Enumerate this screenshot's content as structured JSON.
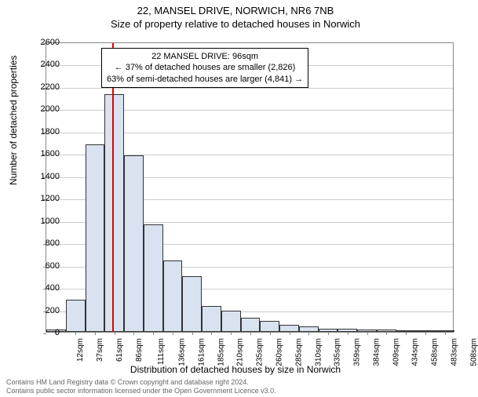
{
  "titles": {
    "main": "22, MANSEL DRIVE, NORWICH, NR6 7NB",
    "sub": "Size of property relative to detached houses in Norwich"
  },
  "chart": {
    "type": "histogram",
    "ylabel": "Number of detached properties",
    "xlabel": "Distribution of detached houses by size in Norwich",
    "ylim": [
      0,
      2600
    ],
    "ytick_step": 200,
    "yticks": [
      0,
      200,
      400,
      600,
      800,
      1000,
      1200,
      1400,
      1600,
      1800,
      2000,
      2200,
      2400,
      2600
    ],
    "xticks": [
      "12sqm",
      "37sqm",
      "61sqm",
      "86sqm",
      "111sqm",
      "136sqm",
      "161sqm",
      "185sqm",
      "210sqm",
      "235sqm",
      "260sqm",
      "285sqm",
      "310sqm",
      "335sqm",
      "359sqm",
      "384sqm",
      "409sqm",
      "434sqm",
      "458sqm",
      "483sqm",
      "508sqm"
    ],
    "bar_values": [
      20,
      290,
      1680,
      2130,
      1580,
      960,
      640,
      500,
      230,
      190,
      130,
      100,
      60,
      50,
      30,
      30,
      20,
      20,
      10,
      10,
      5
    ],
    "bar_fill": "#d8e2f0",
    "bar_stroke": "#333333",
    "grid_color": "#cccccc",
    "background": "#ffffff",
    "ref_line_x_index": 3.4,
    "ref_line_color": "#dd0000"
  },
  "annotation": {
    "line1": "22 MANSEL DRIVE: 96sqm",
    "line2": "← 37% of detached houses are smaller (2,826)",
    "line3": "63% of semi-detached houses are larger (4,841) →"
  },
  "footer": {
    "line1": "Contains HM Land Registry data © Crown copyright and database right 2024.",
    "line2": "Contains public sector information licensed under the Open Government Licence v3.0."
  }
}
